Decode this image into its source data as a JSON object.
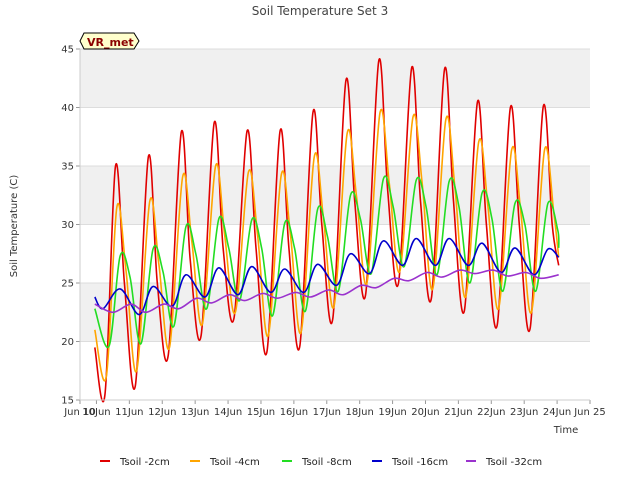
{
  "chart_data": {
    "type": "line",
    "title": "Soil Temperature Set 3",
    "xlabel": "Time",
    "ylabel": "Soil Temperature (C)",
    "station_label": "VR_met",
    "ylim": [
      15,
      45
    ],
    "xlim": [
      9.5,
      25
    ],
    "y_ticks": [
      15,
      20,
      25,
      30,
      35,
      40,
      45
    ],
    "x_ticks": [
      {
        "label": "Jun 10",
        "x": 9.5
      },
      {
        "label": "10Jun",
        "x": 10
      },
      {
        "label": "11Jun",
        "x": 11
      },
      {
        "label": "12Jun",
        "x": 12
      },
      {
        "label": "13Jun",
        "x": 13
      },
      {
        "label": "14Jun",
        "x": 14
      },
      {
        "label": "15Jun",
        "x": 15
      },
      {
        "label": "16Jun",
        "x": 16
      },
      {
        "label": "17Jun",
        "x": 17
      },
      {
        "label": "18Jun",
        "x": 18
      },
      {
        "label": "19Jun",
        "x": 19
      },
      {
        "label": "20Jun",
        "x": 20
      },
      {
        "label": "21Jun",
        "x": 21
      },
      {
        "label": "22Jun",
        "x": 22
      },
      {
        "label": "23Jun",
        "x": 23
      },
      {
        "label": "24Jun",
        "x": 24
      },
      {
        "label": "Jun 25",
        "x": 25
      }
    ],
    "grid": "horizontal bands",
    "legend_position": "bottom",
    "x_unit": "day of June",
    "series": [
      {
        "name": "Tsoil -2cm",
        "color": "#e00000",
        "x": [
          9.95,
          10.26,
          10.58,
          10.85,
          11.18,
          11.58,
          11.85,
          12.18,
          12.58,
          12.85,
          13.18,
          13.58,
          13.85,
          14.18,
          14.58,
          14.85,
          15.18,
          15.58,
          15.85,
          16.18,
          16.58,
          16.85,
          17.18,
          17.58,
          17.85,
          18.18,
          18.58,
          18.85,
          19.18,
          19.58,
          19.85,
          20.18,
          20.58,
          20.85,
          21.18,
          21.58,
          21.85,
          22.18,
          22.58,
          22.85,
          23.18,
          23.58,
          23.85,
          24.05
        ],
        "y": [
          19.5,
          15.5,
          35.0,
          25.0,
          16.2,
          35.8,
          25.0,
          18.8,
          37.9,
          27.0,
          20.5,
          38.7,
          28.0,
          22.0,
          38.0,
          28.0,
          19.1,
          38.0,
          28.0,
          19.6,
          39.6,
          30.0,
          21.9,
          42.3,
          32.0,
          24.0,
          44.0,
          33.0,
          25.0,
          43.4,
          32.0,
          23.7,
          43.3,
          32.0,
          22.6,
          40.5,
          30.0,
          21.4,
          40.0,
          30.0,
          21.1,
          40.1,
          30.0,
          26.5
        ]
      },
      {
        "name": "Tsoil -4cm",
        "color": "#ffa500",
        "x": [
          9.95,
          10.3,
          10.62,
          10.9,
          11.22,
          11.62,
          11.9,
          12.22,
          12.62,
          12.9,
          13.22,
          13.62,
          13.9,
          14.22,
          14.62,
          14.9,
          15.22,
          15.62,
          15.9,
          16.22,
          16.62,
          16.9,
          17.22,
          17.62,
          17.9,
          18.22,
          18.62,
          18.9,
          19.22,
          19.62,
          19.9,
          20.22,
          20.62,
          20.9,
          21.22,
          21.62,
          21.9,
          22.22,
          22.62,
          22.9,
          23.22,
          23.62,
          23.9,
          24.05
        ],
        "y": [
          21.0,
          17.0,
          31.5,
          26.0,
          17.5,
          32.0,
          26.5,
          19.5,
          34.1,
          28.5,
          21.5,
          35.0,
          29.0,
          22.5,
          34.5,
          29.0,
          20.5,
          34.3,
          29.0,
          20.8,
          35.8,
          30.5,
          23.0,
          37.8,
          32.5,
          25.0,
          39.6,
          33.5,
          26.0,
          39.2,
          33.5,
          24.5,
          39.0,
          33.0,
          23.8,
          37.1,
          31.5,
          22.8,
          36.4,
          31.0,
          22.5,
          36.4,
          31.0,
          27.2
        ]
      },
      {
        "name": "Tsoil -8cm",
        "color": "#22dd22",
        "x": [
          9.95,
          10.38,
          10.72,
          11.02,
          11.35,
          11.72,
          12.02,
          12.35,
          12.72,
          13.02,
          13.35,
          13.72,
          14.02,
          14.35,
          14.72,
          15.02,
          15.35,
          15.72,
          16.02,
          16.35,
          16.72,
          17.02,
          17.35,
          17.72,
          18.02,
          18.35,
          18.72,
          19.02,
          19.35,
          19.72,
          20.02,
          20.35,
          20.72,
          21.02,
          21.35,
          21.72,
          22.02,
          22.35,
          22.72,
          23.02,
          23.35,
          23.72,
          24.02,
          24.05
        ],
        "y": [
          22.8,
          19.6,
          27.3,
          25.5,
          19.8,
          27.9,
          26.0,
          21.3,
          29.8,
          27.5,
          22.8,
          30.5,
          28.0,
          23.5,
          30.4,
          28.0,
          22.2,
          30.1,
          28.0,
          22.6,
          31.3,
          29.0,
          24.3,
          32.5,
          30.5,
          25.8,
          33.9,
          31.5,
          26.4,
          33.8,
          31.5,
          25.7,
          33.7,
          31.5,
          25.0,
          32.7,
          30.5,
          24.3,
          31.8,
          30.0,
          24.3,
          31.8,
          29.5,
          28.0
        ]
      },
      {
        "name": "Tsoil -16cm",
        "color": "#0000cc",
        "x": [
          9.95,
          10.2,
          10.72,
          11.3,
          11.72,
          12.3,
          12.72,
          13.3,
          13.72,
          14.3,
          14.72,
          15.3,
          15.72,
          16.3,
          16.72,
          17.3,
          17.72,
          18.3,
          18.72,
          19.3,
          19.72,
          20.3,
          20.72,
          21.3,
          21.72,
          22.3,
          22.72,
          23.3,
          23.72,
          24.05
        ],
        "y": [
          23.8,
          22.8,
          24.5,
          22.3,
          24.7,
          23.0,
          25.7,
          23.8,
          26.3,
          24.0,
          26.4,
          24.2,
          26.2,
          24.2,
          26.6,
          24.8,
          27.5,
          25.8,
          28.6,
          26.5,
          28.8,
          26.5,
          28.8,
          26.5,
          28.4,
          25.9,
          28.0,
          25.7,
          27.9,
          27.2
        ]
      },
      {
        "name": "Tsoil -32cm",
        "color": "#9a32cd",
        "x": [
          9.95,
          10.5,
          11.05,
          11.5,
          12.05,
          12.5,
          13.05,
          13.5,
          14.05,
          14.5,
          15.05,
          15.5,
          16.05,
          16.5,
          17.05,
          17.5,
          18.05,
          18.5,
          19.05,
          19.5,
          20.05,
          20.5,
          21.05,
          21.5,
          22.05,
          22.5,
          23.05,
          23.5,
          24.05
        ],
        "y": [
          23.2,
          22.5,
          23.2,
          22.5,
          23.2,
          22.8,
          23.7,
          23.3,
          24.0,
          23.5,
          24.1,
          23.7,
          24.2,
          23.8,
          24.4,
          24.0,
          24.8,
          24.6,
          25.4,
          25.2,
          25.9,
          25.5,
          26.1,
          25.8,
          26.1,
          25.6,
          25.9,
          25.4,
          25.7
        ]
      }
    ]
  }
}
